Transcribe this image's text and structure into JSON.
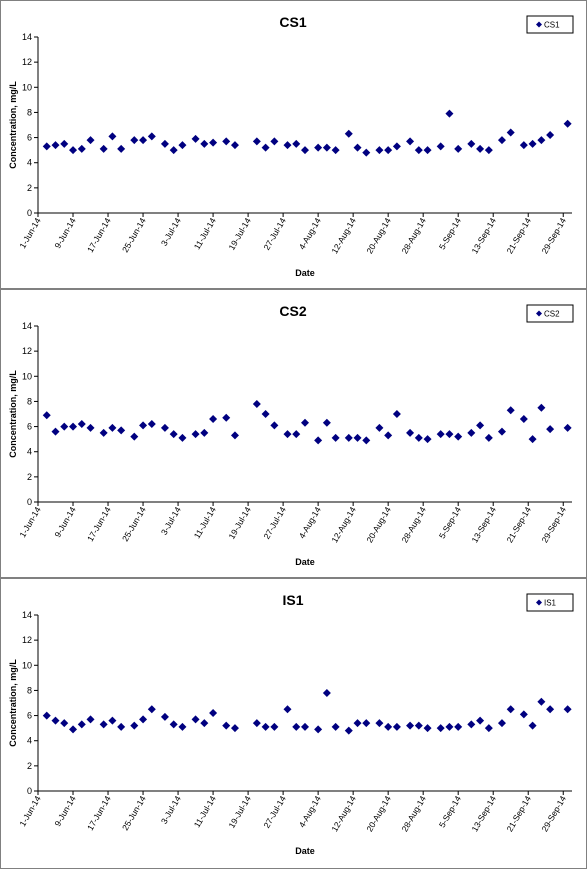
{
  "chart_data": [
    {
      "type": "scatter",
      "title": "CS1",
      "xlabel": "Date",
      "ylabel": "Concentration, mg/L",
      "x": [
        "2014-06-03",
        "2014-06-05",
        "2014-06-07",
        "2014-06-09",
        "2014-06-11",
        "2014-06-13",
        "2014-06-16",
        "2014-06-18",
        "2014-06-20",
        "2014-06-23",
        "2014-06-25",
        "2014-06-27",
        "2014-06-30",
        "2014-07-02",
        "2014-07-04",
        "2014-07-07",
        "2014-07-09",
        "2014-07-11",
        "2014-07-14",
        "2014-07-16",
        "2014-07-21",
        "2014-07-23",
        "2014-07-25",
        "2014-07-28",
        "2014-07-30",
        "2014-08-01",
        "2014-08-04",
        "2014-08-06",
        "2014-08-08",
        "2014-08-11",
        "2014-08-13",
        "2014-08-15",
        "2014-08-18",
        "2014-08-20",
        "2014-08-22",
        "2014-08-25",
        "2014-08-27",
        "2014-08-29",
        "2014-09-01",
        "2014-09-03",
        "2014-09-05",
        "2014-09-08",
        "2014-09-10",
        "2014-09-12",
        "2014-09-15",
        "2014-09-17",
        "2014-09-20",
        "2014-09-22",
        "2014-09-24",
        "2014-09-26",
        "2014-09-30"
      ],
      "series": [
        {
          "name": "CS1",
          "color": "#000080",
          "values": [
            5.3,
            5.4,
            5.5,
            5.0,
            5.1,
            5.8,
            5.1,
            6.1,
            5.1,
            5.8,
            5.8,
            6.1,
            5.5,
            5.0,
            5.4,
            5.9,
            5.5,
            5.6,
            5.7,
            5.4,
            5.7,
            5.2,
            5.7,
            5.4,
            5.5,
            5.0,
            5.2,
            5.2,
            5.0,
            6.3,
            5.2,
            4.8,
            5.0,
            5.0,
            5.3,
            5.7,
            5.0,
            5.0,
            5.3,
            7.9,
            5.1,
            5.5,
            5.1,
            5.0,
            5.8,
            6.4,
            5.4,
            5.5,
            5.8,
            6.2,
            7.1
          ]
        }
      ],
      "xlim": [
        "2014-06-01",
        "2014-10-01"
      ],
      "xticks": [
        {
          "value": "2014-06-01",
          "label": "1-Jun-14"
        },
        {
          "value": "2014-06-09",
          "label": "9-Jun-14"
        },
        {
          "value": "2014-06-17",
          "label": "17-Jun-14"
        },
        {
          "value": "2014-06-25",
          "label": "25-Jun-14"
        },
        {
          "value": "2014-07-03",
          "label": "3-Jul-14"
        },
        {
          "value": "2014-07-11",
          "label": "11-Jul-14"
        },
        {
          "value": "2014-07-19",
          "label": "19-Jul-14"
        },
        {
          "value": "2014-07-27",
          "label": "27-Jul-14"
        },
        {
          "value": "2014-08-04",
          "label": "4-Aug-14"
        },
        {
          "value": "2014-08-12",
          "label": "12-Aug-14"
        },
        {
          "value": "2014-08-20",
          "label": "20-Aug-14"
        },
        {
          "value": "2014-08-28",
          "label": "28-Aug-14"
        },
        {
          "value": "2014-09-05",
          "label": "5-Sep-14"
        },
        {
          "value": "2014-09-13",
          "label": "13-Sep-14"
        },
        {
          "value": "2014-09-21",
          "label": "21-Sep-14"
        },
        {
          "value": "2014-09-29",
          "label": "29-Sep-14"
        }
      ],
      "ylim": [
        0,
        14
      ],
      "yticks": [
        0,
        2,
        4,
        6,
        8,
        10,
        12,
        14
      ],
      "legend": "top-right"
    },
    {
      "type": "scatter",
      "title": "CS2",
      "xlabel": "Date",
      "ylabel": "Concentration, mg/L",
      "x": [
        "2014-06-03",
        "2014-06-05",
        "2014-06-07",
        "2014-06-09",
        "2014-06-11",
        "2014-06-13",
        "2014-06-16",
        "2014-06-18",
        "2014-06-20",
        "2014-06-23",
        "2014-06-25",
        "2014-06-27",
        "2014-06-30",
        "2014-07-02",
        "2014-07-04",
        "2014-07-07",
        "2014-07-09",
        "2014-07-11",
        "2014-07-14",
        "2014-07-16",
        "2014-07-21",
        "2014-07-23",
        "2014-07-25",
        "2014-07-28",
        "2014-07-30",
        "2014-08-01",
        "2014-08-04",
        "2014-08-06",
        "2014-08-08",
        "2014-08-11",
        "2014-08-13",
        "2014-08-15",
        "2014-08-18",
        "2014-08-20",
        "2014-08-22",
        "2014-08-25",
        "2014-08-27",
        "2014-08-29",
        "2014-09-01",
        "2014-09-03",
        "2014-09-05",
        "2014-09-08",
        "2014-09-10",
        "2014-09-12",
        "2014-09-15",
        "2014-09-17",
        "2014-09-20",
        "2014-09-22",
        "2014-09-24",
        "2014-09-26",
        "2014-09-30"
      ],
      "series": [
        {
          "name": "CS2",
          "color": "#000080",
          "values": [
            6.9,
            5.6,
            6.0,
            6.0,
            6.2,
            5.9,
            5.5,
            5.9,
            5.7,
            5.2,
            6.1,
            6.2,
            5.9,
            5.4,
            5.1,
            5.4,
            5.5,
            6.6,
            6.7,
            5.3,
            7.8,
            7.0,
            6.1,
            5.4,
            5.4,
            6.3,
            4.9,
            6.3,
            5.1,
            5.1,
            5.1,
            4.9,
            5.9,
            5.3,
            7.0,
            5.5,
            5.1,
            5.0,
            5.4,
            5.4,
            5.2,
            5.5,
            6.1,
            5.1,
            5.6,
            7.3,
            6.6,
            5.0,
            7.5,
            5.8,
            5.9
          ]
        }
      ],
      "xlim": [
        "2014-06-01",
        "2014-10-01"
      ],
      "xticks": [
        {
          "value": "2014-06-01",
          "label": "1-Jun-14"
        },
        {
          "value": "2014-06-09",
          "label": "9-Jun-14"
        },
        {
          "value": "2014-06-17",
          "label": "17-Jun-14"
        },
        {
          "value": "2014-06-25",
          "label": "25-Jun-14"
        },
        {
          "value": "2014-07-03",
          "label": "3-Jul-14"
        },
        {
          "value": "2014-07-11",
          "label": "11-Jul-14"
        },
        {
          "value": "2014-07-19",
          "label": "19-Jul-14"
        },
        {
          "value": "2014-07-27",
          "label": "27-Jul-14"
        },
        {
          "value": "2014-08-04",
          "label": "4-Aug-14"
        },
        {
          "value": "2014-08-12",
          "label": "12-Aug-14"
        },
        {
          "value": "2014-08-20",
          "label": "20-Aug-14"
        },
        {
          "value": "2014-08-28",
          "label": "28-Aug-14"
        },
        {
          "value": "2014-09-05",
          "label": "5-Sep-14"
        },
        {
          "value": "2014-09-13",
          "label": "13-Sep-14"
        },
        {
          "value": "2014-09-21",
          "label": "21-Sep-14"
        },
        {
          "value": "2014-09-29",
          "label": "29-Sep-14"
        }
      ],
      "ylim": [
        0,
        14
      ],
      "yticks": [
        0,
        2,
        4,
        6,
        8,
        10,
        12,
        14
      ],
      "legend": "top-right"
    },
    {
      "type": "scatter",
      "title": "IS1",
      "xlabel": "Date",
      "ylabel": "Concentration, mg/L",
      "x": [
        "2014-06-03",
        "2014-06-05",
        "2014-06-07",
        "2014-06-09",
        "2014-06-11",
        "2014-06-13",
        "2014-06-16",
        "2014-06-18",
        "2014-06-20",
        "2014-06-23",
        "2014-06-25",
        "2014-06-27",
        "2014-06-30",
        "2014-07-02",
        "2014-07-04",
        "2014-07-07",
        "2014-07-09",
        "2014-07-11",
        "2014-07-14",
        "2014-07-16",
        "2014-07-21",
        "2014-07-23",
        "2014-07-25",
        "2014-07-28",
        "2014-07-30",
        "2014-08-01",
        "2014-08-04",
        "2014-08-06",
        "2014-08-08",
        "2014-08-11",
        "2014-08-13",
        "2014-08-15",
        "2014-08-18",
        "2014-08-20",
        "2014-08-22",
        "2014-08-25",
        "2014-08-27",
        "2014-08-29",
        "2014-09-01",
        "2014-09-03",
        "2014-09-05",
        "2014-09-08",
        "2014-09-10",
        "2014-09-12",
        "2014-09-15",
        "2014-09-17",
        "2014-09-20",
        "2014-09-22",
        "2014-09-24",
        "2014-09-26",
        "2014-09-30"
      ],
      "series": [
        {
          "name": "IS1",
          "color": "#000080",
          "values": [
            6.0,
            5.6,
            5.4,
            4.9,
            5.3,
            5.7,
            5.3,
            5.6,
            5.1,
            5.2,
            5.7,
            6.5,
            5.9,
            5.3,
            5.1,
            5.7,
            5.4,
            6.2,
            5.2,
            5.0,
            5.4,
            5.1,
            5.1,
            6.5,
            5.1,
            5.1,
            4.9,
            7.8,
            5.1,
            4.8,
            5.4,
            5.4,
            5.4,
            5.1,
            5.1,
            5.2,
            5.2,
            5.0,
            5.0,
            5.1,
            5.1,
            5.3,
            5.6,
            5.0,
            5.4,
            6.5,
            6.1,
            5.2,
            7.1,
            6.5,
            6.5
          ]
        }
      ],
      "xlim": [
        "2014-06-01",
        "2014-10-01"
      ],
      "xticks": [
        {
          "value": "2014-06-01",
          "label": "1-Jun-14"
        },
        {
          "value": "2014-06-09",
          "label": "9-Jun-14"
        },
        {
          "value": "2014-06-17",
          "label": "17-Jun-14"
        },
        {
          "value": "2014-06-25",
          "label": "25-Jun-14"
        },
        {
          "value": "2014-07-03",
          "label": "3-Jul-14"
        },
        {
          "value": "2014-07-11",
          "label": "11-Jul-14"
        },
        {
          "value": "2014-07-19",
          "label": "19-Jul-14"
        },
        {
          "value": "2014-07-27",
          "label": "27-Jul-14"
        },
        {
          "value": "2014-08-04",
          "label": "4-Aug-14"
        },
        {
          "value": "2014-08-12",
          "label": "12-Aug-14"
        },
        {
          "value": "2014-08-20",
          "label": "20-Aug-14"
        },
        {
          "value": "2014-08-28",
          "label": "28-Aug-14"
        },
        {
          "value": "2014-09-05",
          "label": "5-Sep-14"
        },
        {
          "value": "2014-09-13",
          "label": "13-Sep-14"
        },
        {
          "value": "2014-09-21",
          "label": "21-Sep-14"
        },
        {
          "value": "2014-09-29",
          "label": "29-Sep-14"
        }
      ],
      "ylim": [
        0,
        14
      ],
      "yticks": [
        0,
        2,
        4,
        6,
        8,
        10,
        12,
        14
      ],
      "legend": "top-right"
    }
  ]
}
